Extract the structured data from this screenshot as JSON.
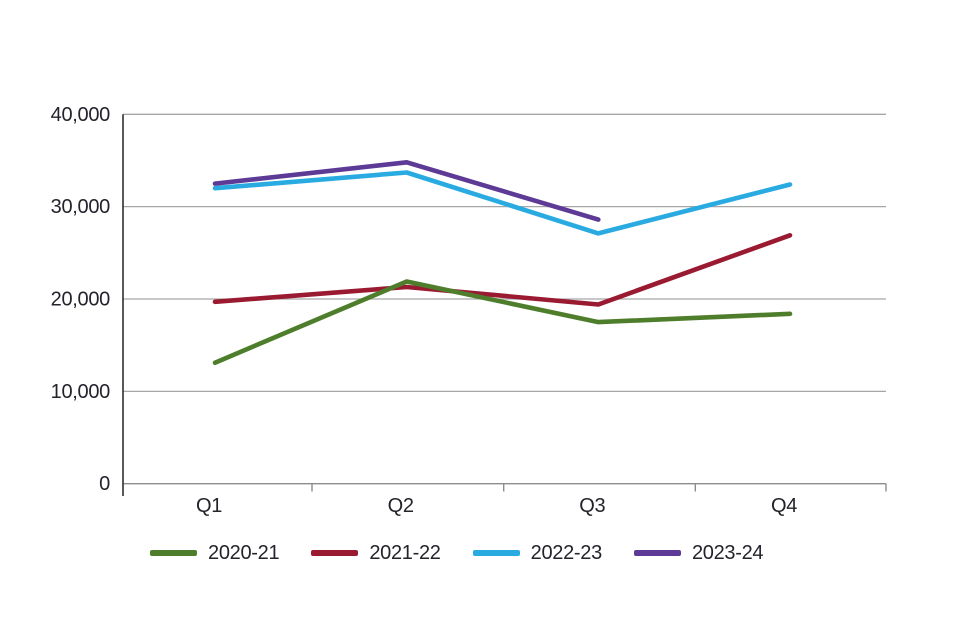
{
  "chart_data": {
    "type": "line",
    "title": "",
    "categories": [
      "Q1",
      "Q2",
      "Q3",
      "Q4"
    ],
    "series": [
      {
        "name": "2020-21",
        "color": "#4E7E2C",
        "values": [
          13100,
          21900,
          17500,
          18400
        ]
      },
      {
        "name": "2021-22",
        "color": "#9A1B31",
        "values": [
          19700,
          21300,
          19400,
          26900
        ]
      },
      {
        "name": "2022-23",
        "color": "#29ABE2",
        "values": [
          32000,
          33700,
          27100,
          32400
        ]
      },
      {
        "name": "2023-24",
        "color": "#5C3A96",
        "values": [
          32500,
          34800,
          28600,
          null
        ]
      }
    ],
    "ylim": [
      0,
      40000
    ],
    "y_tick_step": 10000,
    "y_ticks": [
      {
        "value": 0,
        "label": "0"
      },
      {
        "value": 10000,
        "label": "10,000"
      },
      {
        "value": 20000,
        "label": "20,000"
      },
      {
        "value": 30000,
        "label": "30,000"
      },
      {
        "value": 40000,
        "label": "40,000"
      }
    ],
    "grid": "horizontal",
    "legend_position": "bottom"
  },
  "colors": {
    "background": "#FFFFFF",
    "gridline": "#A6A6A6",
    "x_axis_line": "#8C8C8C",
    "tick_mark": "#8C8C8C",
    "y_axis_line": "#2E2E33",
    "label_text": "#22232B"
  }
}
